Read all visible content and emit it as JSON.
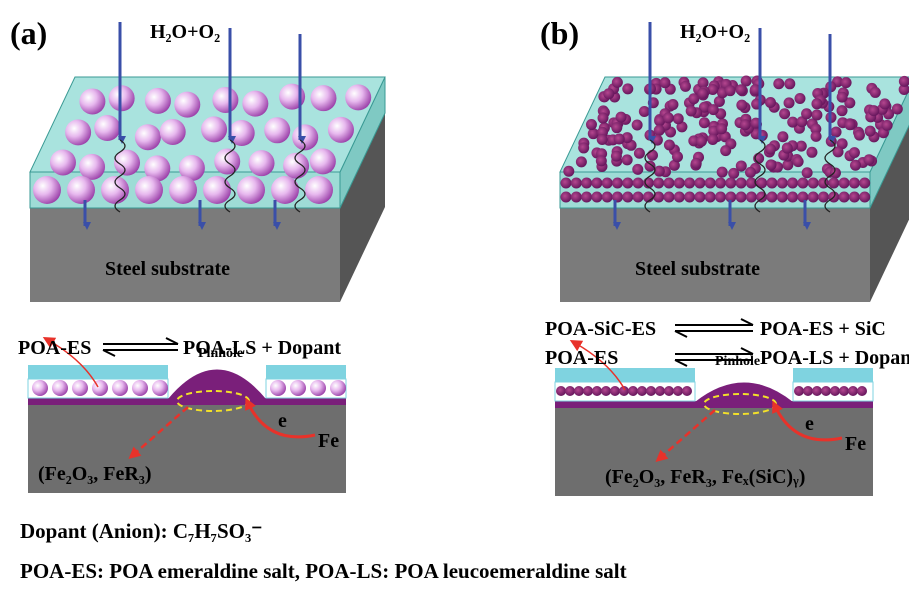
{
  "panels": [
    {
      "label": "(a)",
      "reactant": "H₂O+O₂",
      "substrate": "Steel substrate",
      "reactions": [
        {
          "left": "POA-ES",
          "right": "POA-LS + Dopant"
        }
      ],
      "pinhole": "Pinhole",
      "electron": "e",
      "metal": "Fe",
      "products": "(Fe₂O₃, FeR₃)"
    },
    {
      "label": "(b)",
      "reactant": "H₂O+O₂",
      "substrate": "Steel substrate",
      "reactions": [
        {
          "left": "POA-SiC-ES",
          "right": "POA-ES + SiC"
        },
        {
          "left": "POA-ES",
          "right": "POA-LS + Dopant"
        }
      ],
      "pinhole": "Pinhole",
      "electron": "e",
      "metal": "Fe",
      "products": "(Fe₂O₃, FeR₃, Feₓ(SiC)ᵧ)"
    }
  ],
  "notes": [
    "Dopant (Anion): C₇H₇SO₃⁻",
    "POA-ES: POA emeraldine salt, POA-LS: POA leucoemeraldine salt"
  ]
}
